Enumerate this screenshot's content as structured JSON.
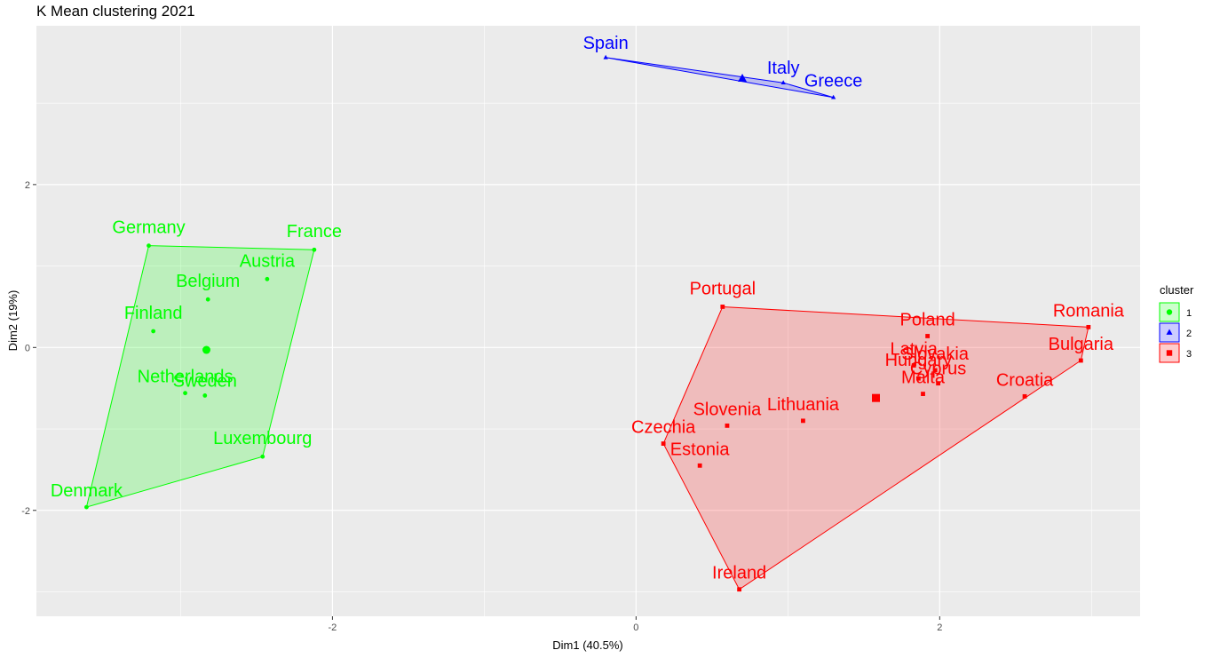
{
  "chart_data": {
    "type": "scatter",
    "title": "K Mean clustering 2021",
    "xlabel": "Dim1 (40.5%)",
    "ylabel": "Dim2 (19%)",
    "xlim": [
      -3.95,
      3.32
    ],
    "ylim": [
      -3.3,
      3.95
    ],
    "xticks": [
      -2,
      0,
      2
    ],
    "yticks": [
      -2,
      0,
      2
    ],
    "grid": true,
    "legend": {
      "title": "cluster",
      "position": "right",
      "entries": [
        "1",
        "2",
        "3"
      ]
    },
    "clusters": [
      {
        "name": "1",
        "color": "#00ff00",
        "marker": "circle",
        "centroid": [
          -2.83,
          -0.03
        ],
        "points": [
          {
            "label": "Germany",
            "x": -3.21,
            "y": 1.25
          },
          {
            "label": "France",
            "x": -2.12,
            "y": 1.2
          },
          {
            "label": "Austria",
            "x": -2.43,
            "y": 0.84
          },
          {
            "label": "Belgium",
            "x": -2.82,
            "y": 0.59
          },
          {
            "label": "Finland",
            "x": -3.18,
            "y": 0.2
          },
          {
            "label": "Netherlands",
            "x": -2.97,
            "y": -0.56
          },
          {
            "label": "Sweden",
            "x": -2.84,
            "y": -0.59
          },
          {
            "label": "Luxembourg",
            "x": -2.46,
            "y": -1.34
          },
          {
            "label": "Denmark",
            "x": -3.62,
            "y": -1.96
          }
        ],
        "hull": [
          "Germany",
          "France",
          "Luxembourg",
          "Denmark"
        ]
      },
      {
        "name": "2",
        "color": "#0000ff",
        "marker": "triangle",
        "centroid": [
          0.7,
          3.3
        ],
        "points": [
          {
            "label": "Spain",
            "x": -0.2,
            "y": 3.56
          },
          {
            "label": "Italy",
            "x": 0.97,
            "y": 3.25
          },
          {
            "label": "Greece",
            "x": 1.3,
            "y": 3.07
          }
        ],
        "hull": [
          "Spain",
          "Italy",
          "Greece"
        ]
      },
      {
        "name": "3",
        "color": "#ff0000",
        "marker": "square",
        "centroid": [
          1.58,
          -0.62
        ],
        "points": [
          {
            "label": "Portugal",
            "x": 0.57,
            "y": 0.5
          },
          {
            "label": "Romania",
            "x": 2.98,
            "y": 0.25
          },
          {
            "label": "Bulgaria",
            "x": 2.93,
            "y": -0.16
          },
          {
            "label": "Poland",
            "x": 1.92,
            "y": 0.14
          },
          {
            "label": "Latvia",
            "x": 1.83,
            "y": -0.22
          },
          {
            "label": "Slovakia",
            "x": 1.97,
            "y": -0.28
          },
          {
            "label": "Hungary",
            "x": 1.86,
            "y": -0.38
          },
          {
            "label": "Cyprus",
            "x": 1.99,
            "y": -0.44
          },
          {
            "label": "Malta",
            "x": 1.89,
            "y": -0.57
          },
          {
            "label": "Croatia",
            "x": 2.56,
            "y": -0.6
          },
          {
            "label": "Lithuania",
            "x": 1.1,
            "y": -0.9
          },
          {
            "label": "Slovenia",
            "x": 0.6,
            "y": -0.96
          },
          {
            "label": "Czechia",
            "x": 0.18,
            "y": -1.18
          },
          {
            "label": "Estonia",
            "x": 0.42,
            "y": -1.45
          },
          {
            "label": "Ireland",
            "x": 0.68,
            "y": -2.97
          }
        ],
        "hull": [
          "Portugal",
          "Romania",
          "Bulgaria",
          "Ireland",
          "Czechia"
        ]
      }
    ]
  }
}
